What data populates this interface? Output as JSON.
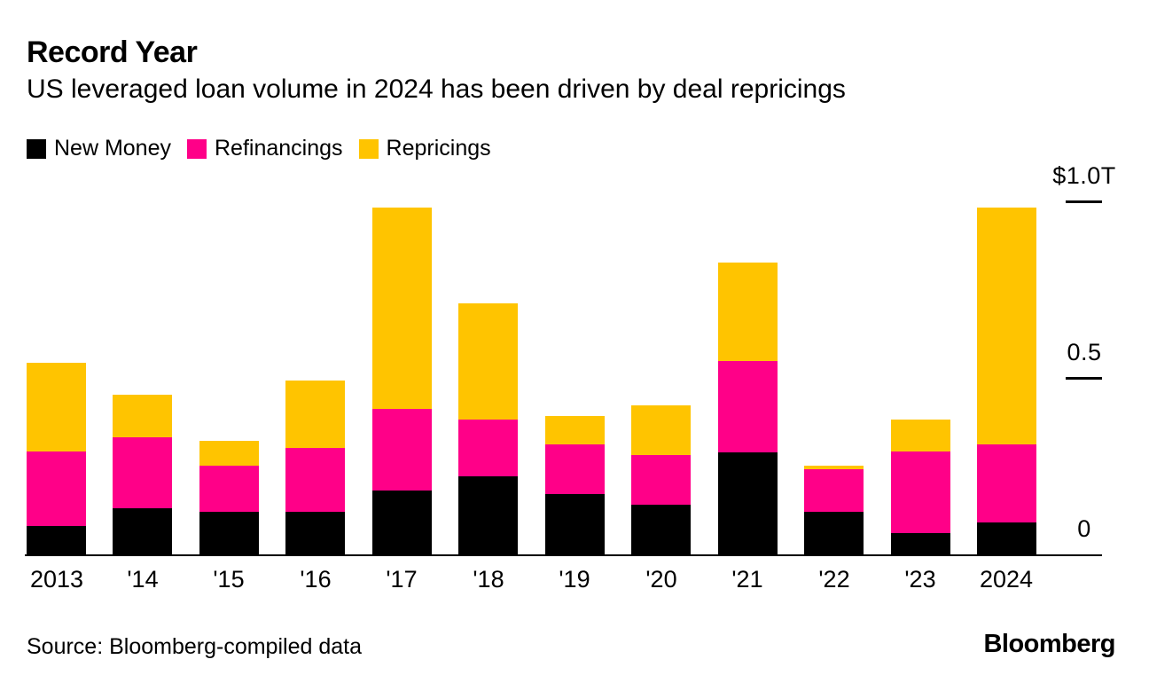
{
  "header": {
    "title": "Record Year",
    "subtitle": "US leveraged loan volume in 2024 has been driven by deal repricings"
  },
  "legend": [
    {
      "label": "New Money",
      "color": "#000000"
    },
    {
      "label": "Refinancings",
      "color": "#ff0088"
    },
    {
      "label": "Repricings",
      "color": "#ffc400"
    }
  ],
  "chart_data": {
    "type": "bar",
    "stacked": true,
    "unit": "trillions of US dollars",
    "categories": [
      "2013",
      "'14",
      "'15",
      "'16",
      "'17",
      "'18",
      "'19",
      "'20",
      "'21",
      "'22",
      "'23",
      "2024"
    ],
    "series": [
      {
        "name": "New Money",
        "color": "#000000",
        "values": [
          0.08,
          0.13,
          0.12,
          0.12,
          0.18,
          0.22,
          0.17,
          0.14,
          0.29,
          0.12,
          0.06,
          0.09
        ]
      },
      {
        "name": "Refinancings",
        "color": "#ff0088",
        "values": [
          0.21,
          0.2,
          0.13,
          0.18,
          0.23,
          0.16,
          0.14,
          0.14,
          0.26,
          0.12,
          0.23,
          0.22
        ]
      },
      {
        "name": "Repricings",
        "color": "#ffc400",
        "values": [
          0.25,
          0.12,
          0.07,
          0.19,
          0.57,
          0.33,
          0.08,
          0.14,
          0.28,
          0.01,
          0.09,
          0.67
        ]
      }
    ],
    "totals": [
      0.54,
      0.45,
      0.32,
      0.49,
      0.98,
      0.71,
      0.39,
      0.42,
      0.83,
      0.25,
      0.38,
      0.98
    ],
    "yticks": [
      {
        "label": "$1.0T",
        "value": 1.0
      },
      {
        "label": "0.5",
        "value": 0.5
      },
      {
        "label": "0",
        "value": 0.0
      }
    ],
    "ylim": [
      0,
      1.05
    ],
    "grid": false,
    "legend_position": "top",
    "title": "Record Year",
    "xlabel": "",
    "ylabel": "US leveraged loan volume ($T)"
  },
  "footer": {
    "source": "Source: Bloomberg-compiled data",
    "logo": "Bloomberg"
  }
}
